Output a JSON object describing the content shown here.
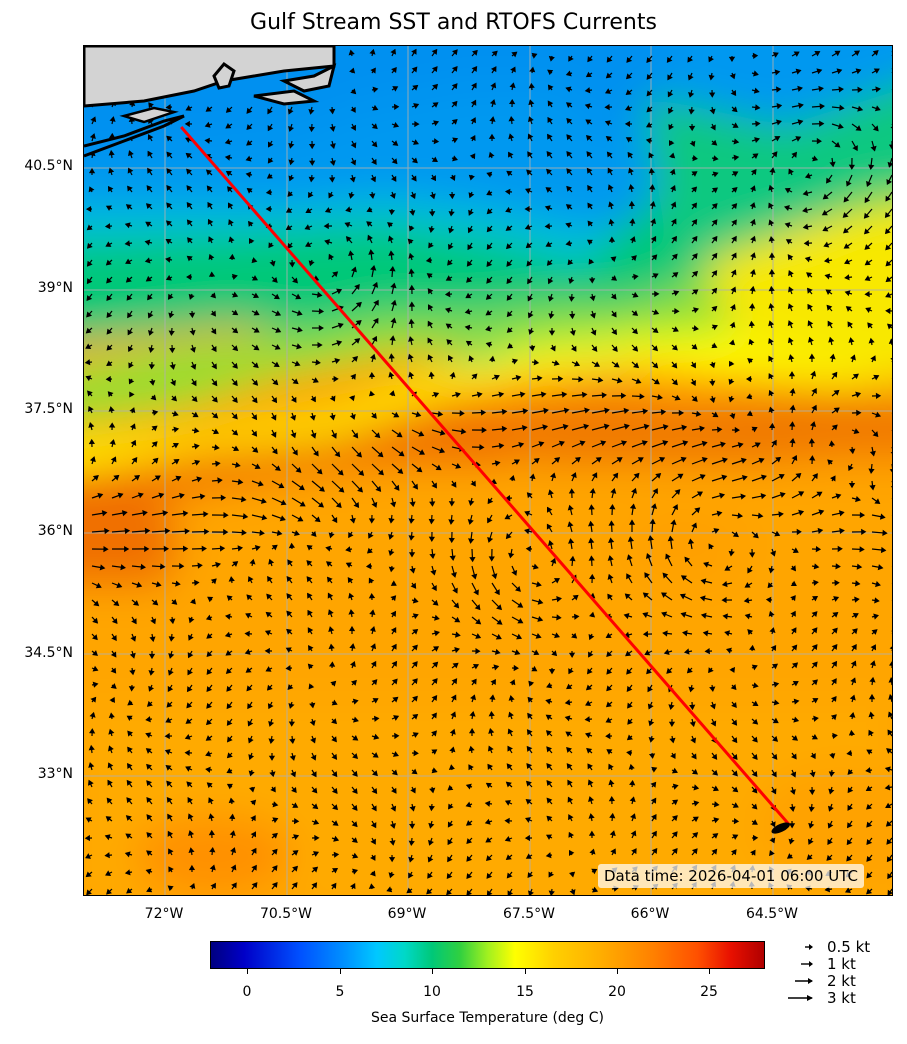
{
  "title": "Gulf Stream SST and RTOFS Currents",
  "data_time": "Data time: 2026-04-01 06:00 UTC",
  "lat_labels": [
    "40.5°N",
    "39°N",
    "37.5°N",
    "36°N",
    "34.5°N",
    "33°N"
  ],
  "lon_labels": [
    "72°W",
    "70.5°W",
    "69°W",
    "67.5°W",
    "66°W",
    "64.5°W"
  ],
  "colorbar": {
    "label": "Sea Surface Temperature (deg C)",
    "ticks": [
      "0",
      "5",
      "10",
      "15",
      "20",
      "25"
    ],
    "range": [
      -2,
      28
    ]
  },
  "quiver_key": [
    "0.5 kt",
    "1 kt",
    "2 kt",
    "3 kt"
  ],
  "route": {
    "color": "#ff0000",
    "start": {
      "lon": -71.8,
      "lat": 41.0
    },
    "end": {
      "lon": -64.3,
      "lat": 32.4
    }
  },
  "map_extent": {
    "lon": [
      -73.0,
      -63.0
    ],
    "lat": [
      31.5,
      42.0
    ]
  },
  "colors": {
    "land": "#d3d3d3",
    "grid": "#b0b0b0",
    "route": "#ff0000"
  }
}
